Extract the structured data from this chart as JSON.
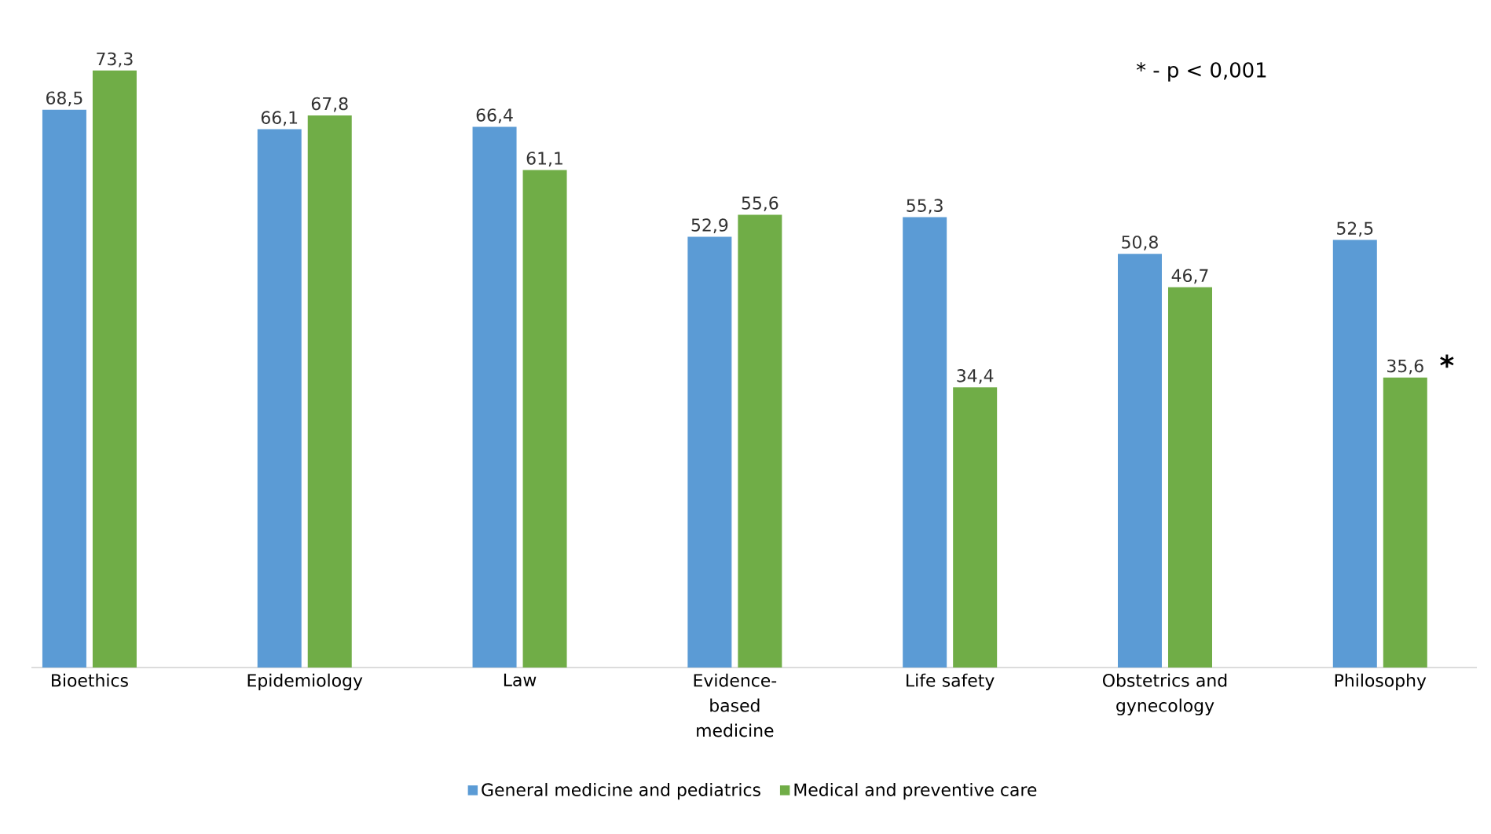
{
  "chart_data": {
    "type": "bar",
    "categories": [
      "Bioethics",
      "Epidemiology",
      "Law",
      "Evidence-based medicine",
      "Life safety",
      "Obstetrics and gynecology",
      "Philosophy"
    ],
    "series": [
      {
        "name": "General medicine and pediatrics",
        "color": "#5b9bd5",
        "values": [
          68.5,
          66.1,
          66.4,
          52.9,
          55.3,
          50.8,
          52.5
        ],
        "value_labels": [
          "68,5",
          "66,1",
          "66,4",
          "52,9",
          "55,3",
          "50,8",
          "52,5"
        ]
      },
      {
        "name": "Medical and preventive care",
        "color": "#70ad47",
        "values": [
          73.3,
          67.8,
          61.1,
          55.6,
          34.4,
          46.7,
          35.6
        ],
        "value_labels": [
          "73,3",
          "67,8",
          "61,1",
          "55,6",
          "34,4",
          "46,7",
          "35,6"
        ]
      }
    ],
    "annotations": [
      "* - p < 0,001",
      {
        "text": "*",
        "x": "Philosophy",
        "y": 35.6
      }
    ],
    "legend": "bottom"
  }
}
